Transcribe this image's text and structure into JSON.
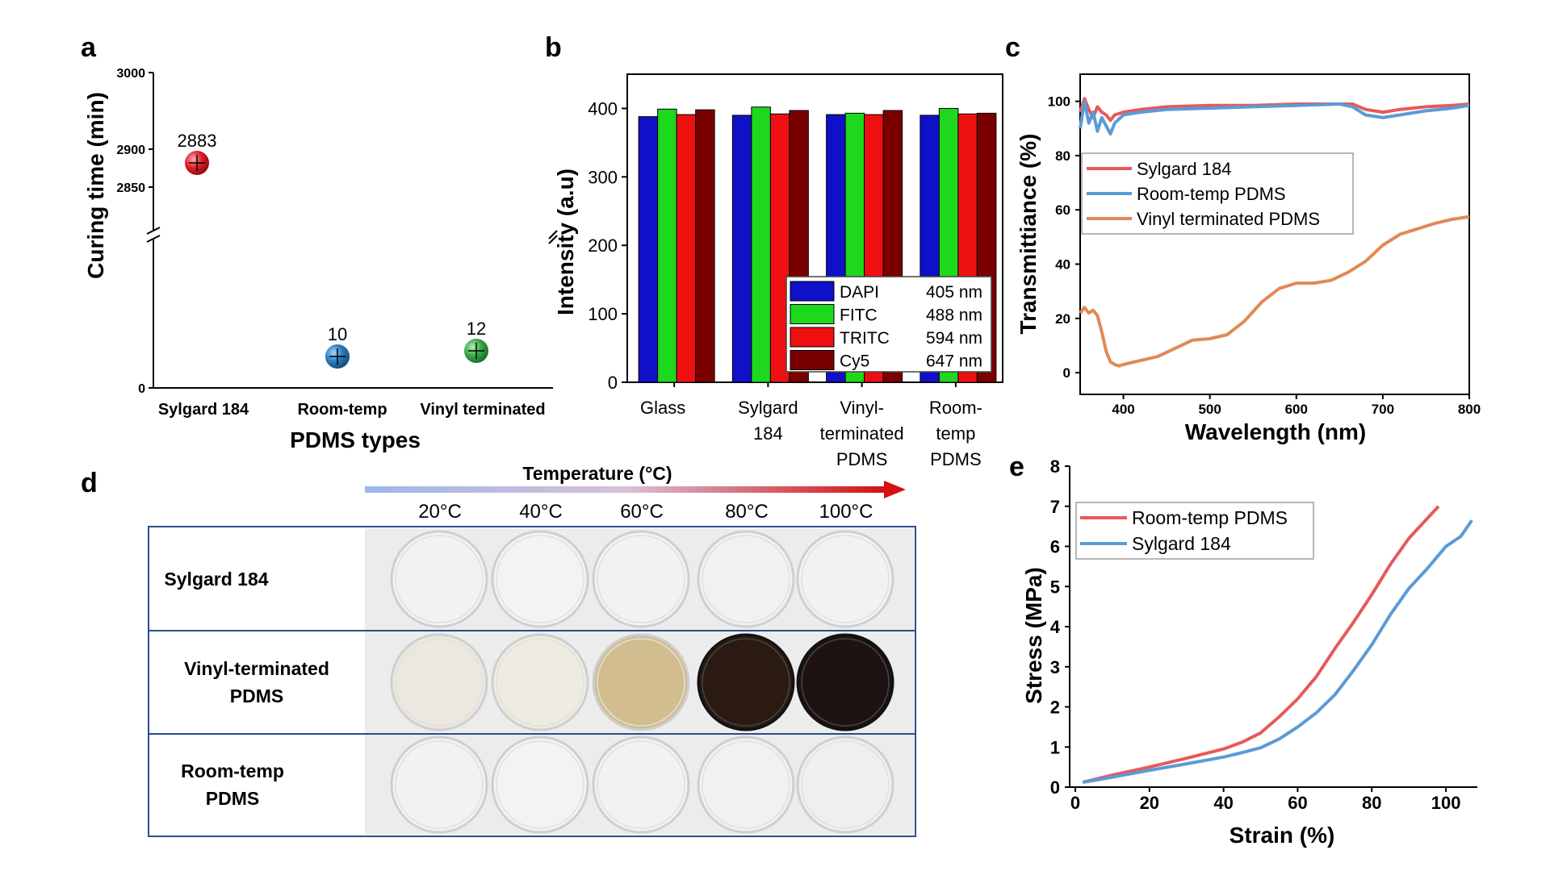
{
  "panels": {
    "a": {
      "letter": "a",
      "chart_data": {
        "type": "scatter",
        "xlabel": "PDMS types",
        "ylabel": "Curing time (min)",
        "categories": [
          "Sylgard 184",
          "Room-temp",
          "Vinyl terminated"
        ],
        "values": [
          2883,
          10,
          12
        ],
        "point_labels": [
          "2883",
          "10",
          "12"
        ],
        "y_ticks_upper": [
          "3000",
          "2900",
          "2850"
        ],
        "y_tick_lower": "0",
        "axis_break": true,
        "colors": [
          "#e0202c",
          "#2a7fc0",
          "#3aa84a"
        ]
      }
    },
    "b": {
      "letter": "b",
      "chart_data": {
        "type": "bar",
        "ylabel": "Intensity (a.u)",
        "ylim": [
          0,
          450
        ],
        "y_ticks": [
          "0",
          "100",
          "200",
          "300",
          "400"
        ],
        "categories": [
          [
            "Glass"
          ],
          [
            "Sylgard",
            "184"
          ],
          [
            "Vinyl-",
            "terminated",
            "PDMS"
          ],
          [
            "Room-",
            "temp",
            "PDMS"
          ]
        ],
        "series": [
          {
            "name": "DAPI",
            "wavelength": "405 nm",
            "color": "#1010c8",
            "values": [
              388,
              390,
              391,
              390
            ]
          },
          {
            "name": "FITC",
            "wavelength": "488 nm",
            "color": "#1ed81e",
            "values": [
              399,
              402,
              393,
              400
            ]
          },
          {
            "name": "TRITC",
            "wavelength": "594 nm",
            "color": "#ee1010",
            "values": [
              391,
              392,
              391,
              392
            ]
          },
          {
            "name": "Cy5",
            "wavelength": "647 nm",
            "color": "#7a0000",
            "values": [
              398,
              397,
              397,
              393
            ]
          }
        ]
      }
    },
    "c": {
      "letter": "c",
      "chart_data": {
        "type": "line",
        "xlabel": "Wavelength (nm)",
        "ylabel": "Transmittiance (%)",
        "xlim": [
          350,
          800
        ],
        "ylim": [
          -8,
          110
        ],
        "x_ticks": [
          "400",
          "500",
          "600",
          "700",
          "800"
        ],
        "y_ticks": [
          "0",
          "20",
          "40",
          "60",
          "80",
          "100"
        ],
        "series": [
          {
            "name": "Sylgard 184",
            "color": "#e8595a",
            "x": [
              350,
              355,
              360,
              365,
              370,
              375,
              380,
              385,
              390,
              400,
              420,
              450,
              500,
              550,
              600,
              650,
              665,
              680,
              700,
              720,
              750,
              780,
              800
            ],
            "y": [
              96,
              101,
              97,
              94,
              98,
              96,
              95,
              93,
              95,
              96,
              97,
              98,
              98.5,
              98.5,
              99,
              99,
              99,
              97,
              96,
              97,
              98,
              98.5,
              99
            ]
          },
          {
            "name": "Room-temp PDMS",
            "color": "#5b9bd5",
            "x": [
              350,
              355,
              360,
              365,
              370,
              375,
              380,
              385,
              390,
              400,
              420,
              450,
              500,
              550,
              600,
              650,
              665,
              680,
              700,
              720,
              750,
              780,
              800
            ],
            "y": [
              90,
              100,
              92,
              96,
              89,
              94,
              91,
              88,
              92,
              95,
              96,
              97,
              97.5,
              98,
              98.5,
              99,
              98,
              95,
              94,
              95,
              96.5,
              97.5,
              98.5
            ]
          },
          {
            "name": "Vinyl terminated PDMS",
            "color": "#e08a55",
            "x": [
              350,
              355,
              360,
              365,
              370,
              375,
              380,
              385,
              390,
              395,
              400,
              420,
              440,
              460,
              480,
              500,
              520,
              540,
              560,
              580,
              600,
              620,
              640,
              660,
              680,
              700,
              720,
              740,
              760,
              780,
              800
            ],
            "y": [
              22,
              24,
              22,
              23,
              21,
              15,
              8,
              4,
              3,
              2.5,
              3,
              4.5,
              6,
              9,
              12,
              12.5,
              14,
              19,
              26,
              31,
              33,
              33,
              34,
              37,
              41,
              47,
              51,
              53,
              55,
              56.5,
              57.5
            ]
          }
        ]
      }
    },
    "d": {
      "letter": "d",
      "temperature_label": "Temperature (°C)",
      "temperatures": [
        "20°C",
        "40°C",
        "60°C",
        "80°C",
        "100°C"
      ],
      "rows": [
        {
          "label": [
            "Sylgard 184"
          ],
          "dish_colors": [
            "#f2f2f2",
            "#f3f3f2",
            "#f2f2f1",
            "#f1f1f1",
            "#f2f2f2"
          ]
        },
        {
          "label": [
            "Vinyl-terminated",
            "PDMS"
          ],
          "dish_colors": [
            "#ece8df",
            "#eeebe0",
            "#d2bd8f",
            "#2a1a12",
            "#1e1212"
          ]
        },
        {
          "label": [
            "Room-temp",
            "PDMS"
          ],
          "dish_colors": [
            "#f2f2f1",
            "#f3f3f2",
            "#f2f2f2",
            "#f1f1f0",
            "#eff0ee"
          ]
        }
      ]
    },
    "e": {
      "letter": "e",
      "chart_data": {
        "type": "line",
        "xlabel": "Strain (%)",
        "ylabel": "Stress (MPa)",
        "xlim": [
          0,
          110
        ],
        "ylim": [
          0,
          8
        ],
        "x_ticks": [
          "0",
          "20",
          "40",
          "60",
          "80",
          "100"
        ],
        "y_ticks": [
          "0",
          "1",
          "2",
          "3",
          "4",
          "5",
          "6",
          "7",
          "8"
        ],
        "series": [
          {
            "name": "Room-temp PDMS",
            "color": "#e8595a",
            "x": [
              2,
              10,
              20,
              30,
              40,
              45,
              50,
              55,
              60,
              65,
              70,
              75,
              80,
              85,
              90,
              95,
              98
            ],
            "y": [
              0.12,
              0.3,
              0.5,
              0.72,
              0.95,
              1.12,
              1.35,
              1.75,
              2.2,
              2.75,
              3.45,
              4.1,
              4.8,
              5.55,
              6.2,
              6.7,
              7.0
            ]
          },
          {
            "name": "Sylgard 184",
            "color": "#5b9bd5",
            "x": [
              2,
              10,
              20,
              30,
              40,
              45,
              50,
              55,
              60,
              65,
              70,
              75,
              80,
              85,
              90,
              95,
              100,
              104,
              107
            ],
            "y": [
              0.12,
              0.25,
              0.42,
              0.58,
              0.75,
              0.86,
              0.98,
              1.2,
              1.5,
              1.85,
              2.3,
              2.9,
              3.55,
              4.3,
              4.95,
              5.45,
              6.0,
              6.25,
              6.65
            ]
          }
        ]
      }
    }
  }
}
